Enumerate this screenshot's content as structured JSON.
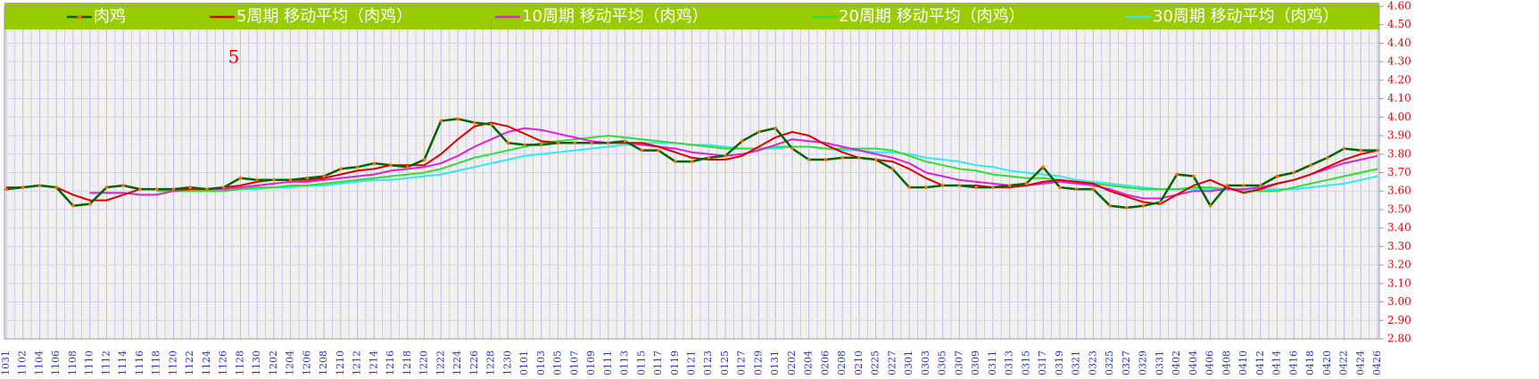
{
  "chart_data": {
    "type": "line",
    "annotation": "5",
    "categories": [
      "1031",
      "1102",
      "1104",
      "1106",
      "1108",
      "1110",
      "1112",
      "1114",
      "1116",
      "1118",
      "1120",
      "1122",
      "1124",
      "1126",
      "1128",
      "1130",
      "1202",
      "1204",
      "1206",
      "1208",
      "1210",
      "1212",
      "1214",
      "1216",
      "1218",
      "1220",
      "1222",
      "1224",
      "1226",
      "1228",
      "1230",
      "0101",
      "0103",
      "0105",
      "0107",
      "0109",
      "0111",
      "0113",
      "0115",
      "0117",
      "0119",
      "0121",
      "0123",
      "0125",
      "0127",
      "0129",
      "0131",
      "0202",
      "0204",
      "0206",
      "0208",
      "0210",
      "0225",
      "0227",
      "0301",
      "0303",
      "0305",
      "0307",
      "0309",
      "0311",
      "0313",
      "0315",
      "0317",
      "0319",
      "0321",
      "0323",
      "0325",
      "0327",
      "0329",
      "0331",
      "0402",
      "0404",
      "0406",
      "0408",
      "0410",
      "0412",
      "0414",
      "0416",
      "0418",
      "0420",
      "0422",
      "0424",
      "0426"
    ],
    "series": [
      {
        "name": "肉鸡",
        "color": "#006600",
        "marker_color": "#ff6a00",
        "values": [
          3.61,
          3.62,
          3.63,
          3.62,
          3.52,
          3.53,
          3.62,
          3.63,
          3.61,
          3.61,
          3.61,
          3.62,
          3.61,
          3.62,
          3.67,
          3.66,
          3.66,
          3.66,
          3.67,
          3.68,
          3.72,
          3.73,
          3.75,
          3.74,
          3.73,
          3.77,
          3.98,
          3.99,
          3.97,
          3.96,
          3.86,
          3.85,
          3.85,
          3.86,
          3.86,
          3.86,
          3.86,
          3.87,
          3.82,
          3.82,
          3.76,
          3.76,
          3.78,
          3.79,
          3.87,
          3.92,
          3.94,
          3.83,
          3.77,
          3.77,
          3.78,
          3.78,
          3.77,
          3.72,
          3.62,
          3.62,
          3.63,
          3.63,
          3.62,
          3.62,
          3.63,
          3.64,
          3.73,
          3.62,
          3.61,
          3.61,
          3.52,
          3.51,
          3.52,
          3.54,
          3.69,
          3.68,
          3.52,
          3.63,
          3.63,
          3.63,
          3.68,
          3.7,
          3.74,
          3.78,
          3.83,
          3.82,
          3.82
        ]
      },
      {
        "name": "5周期 移动平均（肉鸡）",
        "color": "#dd0000",
        "values": [
          3.62,
          3.62,
          3.63,
          3.62,
          3.58,
          3.55,
          3.55,
          3.58,
          3.61,
          3.61,
          3.61,
          3.61,
          3.61,
          3.62,
          3.63,
          3.65,
          3.66,
          3.66,
          3.66,
          3.67,
          3.69,
          3.71,
          3.72,
          3.74,
          3.74,
          3.74,
          3.8,
          3.88,
          3.95,
          3.97,
          3.95,
          3.91,
          3.87,
          3.86,
          3.86,
          3.86,
          3.86,
          3.86,
          3.86,
          3.84,
          3.81,
          3.78,
          3.77,
          3.77,
          3.79,
          3.84,
          3.89,
          3.92,
          3.9,
          3.85,
          3.81,
          3.78,
          3.77,
          3.76,
          3.72,
          3.67,
          3.63,
          3.63,
          3.63,
          3.62,
          3.62,
          3.63,
          3.65,
          3.66,
          3.65,
          3.64,
          3.6,
          3.57,
          3.54,
          3.53,
          3.58,
          3.63,
          3.66,
          3.62,
          3.59,
          3.61,
          3.64,
          3.66,
          3.69,
          3.73,
          3.77,
          3.8,
          3.82
        ]
      },
      {
        "name": "10周期 移动平均（肉鸡）",
        "color": "#e020d8",
        "values": [
          null,
          null,
          null,
          null,
          null,
          3.59,
          3.59,
          3.59,
          3.58,
          3.58,
          3.6,
          3.61,
          3.61,
          3.61,
          3.62,
          3.63,
          3.64,
          3.65,
          3.65,
          3.66,
          3.67,
          3.68,
          3.69,
          3.71,
          3.72,
          3.73,
          3.75,
          3.79,
          3.84,
          3.88,
          3.92,
          3.94,
          3.93,
          3.91,
          3.89,
          3.87,
          3.86,
          3.86,
          3.85,
          3.84,
          3.83,
          3.81,
          3.8,
          3.79,
          3.8,
          3.82,
          3.85,
          3.88,
          3.87,
          3.86,
          3.84,
          3.82,
          3.8,
          3.78,
          3.75,
          3.7,
          3.68,
          3.66,
          3.65,
          3.64,
          3.63,
          3.63,
          3.64,
          3.65,
          3.64,
          3.63,
          3.61,
          3.58,
          3.56,
          3.56,
          3.58,
          3.6,
          3.6,
          3.61,
          3.61,
          3.62,
          3.64,
          3.66,
          3.69,
          3.72,
          3.75,
          3.77,
          3.79
        ]
      },
      {
        "name": "20周期 移动平均（肉鸡）",
        "color": "#33dd33",
        "values": [
          null,
          null,
          null,
          null,
          null,
          null,
          null,
          null,
          null,
          3.6,
          3.6,
          3.6,
          3.6,
          3.6,
          3.61,
          3.62,
          3.62,
          3.63,
          3.63,
          3.64,
          3.65,
          3.66,
          3.67,
          3.68,
          3.69,
          3.7,
          3.72,
          3.75,
          3.78,
          3.8,
          3.82,
          3.84,
          3.86,
          3.87,
          3.88,
          3.89,
          3.9,
          3.89,
          3.88,
          3.87,
          3.86,
          3.85,
          3.84,
          3.83,
          3.83,
          3.83,
          3.84,
          3.84,
          3.84,
          3.83,
          3.83,
          3.83,
          3.83,
          3.82,
          3.79,
          3.76,
          3.74,
          3.72,
          3.71,
          3.69,
          3.68,
          3.67,
          3.67,
          3.66,
          3.65,
          3.64,
          3.63,
          3.62,
          3.61,
          3.61,
          3.61,
          3.62,
          3.62,
          3.61,
          3.6,
          3.6,
          3.6,
          3.62,
          3.64,
          3.66,
          3.68,
          3.7,
          3.72
        ]
      },
      {
        "name": "30周期 移动平均（肉鸡）",
        "color": "#33e8f0",
        "values": [
          null,
          null,
          null,
          null,
          null,
          null,
          null,
          null,
          null,
          null,
          null,
          null,
          null,
          3.6,
          3.61,
          3.61,
          3.62,
          3.62,
          3.63,
          3.63,
          3.64,
          3.65,
          3.66,
          3.66,
          3.67,
          3.68,
          3.69,
          3.71,
          3.73,
          3.75,
          3.77,
          3.79,
          3.8,
          3.81,
          3.82,
          3.83,
          3.84,
          3.85,
          3.86,
          3.86,
          3.86,
          3.85,
          3.85,
          3.84,
          3.83,
          3.83,
          3.83,
          3.84,
          3.84,
          3.83,
          3.82,
          3.82,
          3.81,
          3.81,
          3.8,
          3.78,
          3.77,
          3.76,
          3.74,
          3.73,
          3.71,
          3.7,
          3.69,
          3.68,
          3.66,
          3.65,
          3.64,
          3.63,
          3.62,
          3.61,
          3.61,
          3.61,
          3.61,
          3.61,
          3.61,
          3.61,
          3.61,
          3.61,
          3.62,
          3.63,
          3.64,
          3.66,
          3.68
        ]
      }
    ],
    "ylim": [
      2.8,
      4.6
    ],
    "yticks": [
      {
        "value": 2.8,
        "label": "2.80"
      },
      {
        "value": 2.9,
        "label": "2.90"
      },
      {
        "value": 3.0,
        "label": "3.00"
      },
      {
        "value": 3.1,
        "label": "3.10"
      },
      {
        "value": 3.2,
        "label": "3.20"
      },
      {
        "value": 3.3,
        "label": "3.30"
      },
      {
        "value": 3.4,
        "label": "3.40"
      },
      {
        "value": 3.5,
        "label": "3.50"
      },
      {
        "value": 3.6,
        "label": "3.60"
      },
      {
        "value": 3.7,
        "label": "3.70"
      },
      {
        "value": 3.8,
        "label": "3.80"
      },
      {
        "value": 3.9,
        "label": "3.90"
      },
      {
        "value": 4.0,
        "label": "4.00"
      },
      {
        "value": 4.1,
        "label": "4.10"
      },
      {
        "value": 4.2,
        "label": "4.20"
      },
      {
        "value": 4.3,
        "label": "4.30"
      },
      {
        "value": 4.4,
        "label": "4.40"
      },
      {
        "value": 4.5,
        "label": "4.50"
      },
      {
        "value": 4.6,
        "label": "4.60"
      }
    ],
    "grid": true,
    "legend": "top",
    "legend_color": "#99cc00",
    "tick_label_color": "#ee0000",
    "category_label_color": "#2233cc"
  }
}
